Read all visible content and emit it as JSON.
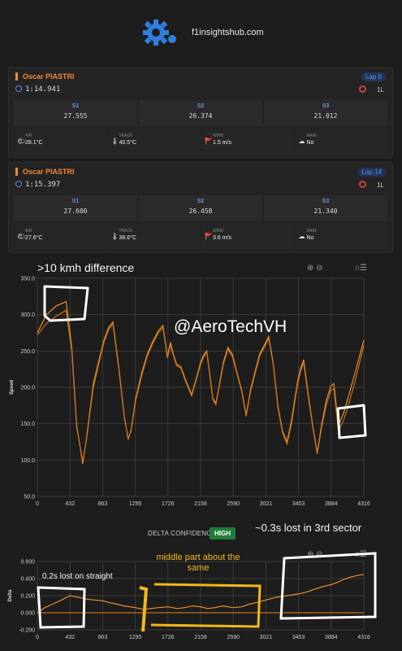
{
  "site": "f1insightshub.com",
  "laps": [
    {
      "driver": "Oscar PIASTRI",
      "time": "1:14.941",
      "lap": "Lap 6",
      "tyre": "1L",
      "sectors": [
        {
          "label": "S1",
          "value": "27.555"
        },
        {
          "label": "S2",
          "value": "26.374"
        },
        {
          "label": "S3",
          "value": "21.012"
        }
      ],
      "weather": [
        {
          "label": "AIR",
          "value": "28.1°C",
          "icon": "sun-icon"
        },
        {
          "label": "TRACK",
          "value": "40.5°C",
          "icon": "thermometer-icon"
        },
        {
          "label": "WIND",
          "value": "1.5 m/s",
          "icon": "windsock-icon"
        },
        {
          "label": "RAIN",
          "value": "No",
          "icon": "cloud-icon"
        }
      ]
    },
    {
      "driver": "Oscar PIASTRI",
      "time": "1:15.397",
      "lap": "Lap 14",
      "tyre": "1L",
      "sectors": [
        {
          "label": "S1",
          "value": "27.600"
        },
        {
          "label": "S2",
          "value": "26.458"
        },
        {
          "label": "S3",
          "value": "21.340"
        }
      ],
      "weather": [
        {
          "label": "AIR",
          "value": "27.6°C",
          "icon": "sun-icon"
        },
        {
          "label": "TRACK",
          "value": "38.6°C",
          "icon": "thermometer-icon"
        },
        {
          "label": "WIND",
          "value": "3.6 m/s",
          "icon": "windsock-icon"
        },
        {
          "label": "RAIN",
          "value": "No",
          "icon": "cloud-icon"
        }
      ]
    }
  ],
  "annotations": {
    "speed_note": ">10 kmh difference",
    "watermark": "@AeroTechVH",
    "third_sector": "~0.3s lost in 3rd sector",
    "middle": "middle part about the same",
    "straight": "0.2s lost on straight"
  },
  "delta": {
    "confidence_label": "DELTA CONFIDENCE:",
    "confidence_value": "HIGH"
  },
  "colors": {
    "accent": "#f0883a",
    "line1": "#e8902f",
    "line2": "#c9701c",
    "annot_yellow": "#f2b81c"
  },
  "chart_data": [
    {
      "type": "line",
      "ylabel": "Speed",
      "xlabel": "",
      "ylim": [
        50,
        350
      ],
      "xlim": [
        0,
        4316
      ],
      "yticks": [
        50,
        100,
        150,
        200,
        250,
        300,
        350
      ],
      "xticks": [
        0,
        432,
        863,
        1295,
        1726,
        2158,
        2590,
        3021,
        3453,
        3884,
        4316
      ],
      "series": [
        {
          "x": [
            0,
            120,
            250,
            380,
            455,
            520,
            600,
            650,
            740,
            820,
            880,
            940,
            1000,
            1080,
            1150,
            1200,
            1240,
            1300,
            1380,
            1450,
            1520,
            1600,
            1660,
            1720,
            1760,
            1800,
            1840,
            1900,
            1960,
            2000,
            2040,
            2100,
            2160,
            2200,
            2240,
            2280,
            2320,
            2360,
            2400,
            2460,
            2520,
            2580,
            2640,
            2700,
            2760,
            2820,
            2880,
            2940,
            3000,
            3060,
            3120,
            3180,
            3240,
            3300,
            3360,
            3400,
            3440,
            3480,
            3520,
            3580,
            3640,
            3700,
            3760,
            3820,
            3880,
            3920,
            3980,
            4050,
            4120,
            4200,
            4316
          ],
          "y": [
            275,
            300,
            312,
            318,
            255,
            148,
            95,
            130,
            205,
            240,
            265,
            282,
            290,
            225,
            160,
            128,
            142,
            185,
            220,
            245,
            262,
            278,
            285,
            242,
            262,
            245,
            232,
            228,
            210,
            200,
            190,
            212,
            235,
            245,
            250,
            218,
            185,
            178,
            200,
            235,
            255,
            245,
            220,
            197,
            162,
            198,
            222,
            246,
            258,
            270,
            232,
            175,
            140,
            125,
            155,
            182,
            208,
            226,
            238,
            192,
            148,
            110,
            150,
            182,
            202,
            205,
            148,
            165,
            190,
            220,
            265
          ]
        },
        {
          "x": [
            0,
            120,
            250,
            380,
            455,
            520,
            600,
            650,
            740,
            820,
            880,
            940,
            1000,
            1080,
            1150,
            1200,
            1240,
            1300,
            1380,
            1450,
            1520,
            1600,
            1660,
            1720,
            1760,
            1800,
            1840,
            1900,
            1960,
            2000,
            2040,
            2100,
            2160,
            2200,
            2240,
            2280,
            2320,
            2360,
            2400,
            2460,
            2520,
            2580,
            2640,
            2700,
            2760,
            2820,
            2880,
            2940,
            3000,
            3060,
            3120,
            3180,
            3240,
            3300,
            3360,
            3400,
            3440,
            3480,
            3520,
            3580,
            3640,
            3700,
            3760,
            3820,
            3880,
            3920,
            3980,
            4050,
            4120,
            4200,
            4316
          ],
          "y": [
            272,
            288,
            298,
            306,
            250,
            145,
            98,
            128,
            200,
            236,
            262,
            279,
            287,
            222,
            158,
            130,
            140,
            182,
            216,
            242,
            259,
            275,
            282,
            240,
            258,
            243,
            230,
            226,
            208,
            198,
            188,
            210,
            232,
            242,
            248,
            216,
            183,
            176,
            198,
            232,
            252,
            242,
            218,
            195,
            160,
            195,
            219,
            243,
            255,
            267,
            230,
            172,
            138,
            122,
            150,
            178,
            204,
            222,
            234,
            188,
            146,
            108,
            146,
            176,
            196,
            198,
            140,
            155,
            178,
            208,
            258
          ]
        }
      ]
    },
    {
      "type": "line",
      "ylabel": "Delta",
      "xlabel": "",
      "ylim": [
        -0.2,
        0.6
      ],
      "xlim": [
        0,
        4316
      ],
      "yticks": [
        -0.2,
        0.0,
        0.2,
        0.4,
        0.6
      ],
      "xticks": [
        0,
        432,
        863,
        1295,
        1726,
        2158,
        2590,
        3021,
        3453,
        3884,
        4316
      ],
      "series": [
        {
          "x": [
            0,
            100,
            200,
            300,
            432,
            550,
            650,
            750,
            863,
            950,
            1050,
            1150,
            1295,
            1400,
            1500,
            1600,
            1726,
            1850,
            1950,
            2050,
            2158,
            2250,
            2350,
            2450,
            2590,
            2700,
            2800,
            2900,
            3021,
            3150,
            3300,
            3453,
            3550,
            3650,
            3750,
            3884,
            3950,
            4050,
            4150,
            4250,
            4316
          ],
          "y": [
            0.0,
            0.06,
            0.1,
            0.14,
            0.2,
            0.18,
            0.16,
            0.15,
            0.14,
            0.12,
            0.1,
            0.08,
            0.06,
            0.04,
            0.05,
            0.06,
            0.07,
            0.05,
            0.06,
            0.08,
            0.07,
            0.05,
            0.06,
            0.08,
            0.06,
            0.07,
            0.1,
            0.12,
            0.15,
            0.18,
            0.2,
            0.22,
            0.24,
            0.27,
            0.3,
            0.33,
            0.35,
            0.39,
            0.42,
            0.44,
            0.45
          ]
        },
        {
          "x": [
            0,
            4316
          ],
          "y": [
            0.0,
            0.0
          ]
        }
      ]
    }
  ]
}
